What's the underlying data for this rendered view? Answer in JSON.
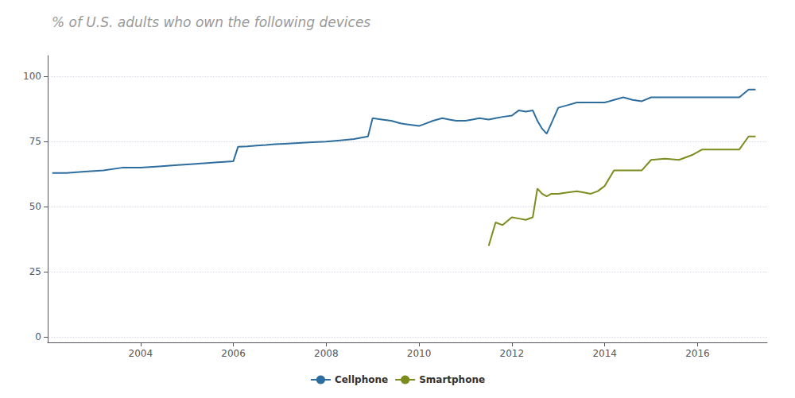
{
  "chart_data": {
    "type": "line",
    "title": "% of U.S. adults who own the following devices",
    "series": [
      {
        "name": "Cellphone",
        "color": "#2e6e9e",
        "x": [
          2002.1,
          2002.4,
          2002.8,
          2003.2,
          2003.6,
          2004.0,
          2004.4,
          2004.8,
          2005.2,
          2005.6,
          2006.0,
          2006.1,
          2006.3,
          2006.5,
          2006.7,
          2006.9,
          2007.1,
          2007.4,
          2007.7,
          2008.0,
          2008.3,
          2008.6,
          2008.9,
          2009.0,
          2009.2,
          2009.4,
          2009.6,
          2009.8,
          2010.0,
          2010.15,
          2010.3,
          2010.5,
          2010.65,
          2010.8,
          2011.0,
          2011.15,
          2011.3,
          2011.5,
          2011.65,
          2011.8,
          2012.0,
          2012.15,
          2012.3,
          2012.45,
          2012.55,
          2012.65,
          2012.75,
          2012.85,
          2013.0,
          2013.2,
          2013.4,
          2013.6,
          2013.8,
          2014.0,
          2014.2,
          2014.4,
          2014.6,
          2014.8,
          2015.0,
          2015.3,
          2015.6,
          2015.9,
          2016.1,
          2016.4,
          2016.6,
          2016.9,
          2017.1,
          2017.25
        ],
        "values": [
          63,
          63,
          63.5,
          64,
          65,
          65,
          65.5,
          66,
          66.5,
          67,
          67.5,
          73,
          73.2,
          73.5,
          73.7,
          74,
          74.2,
          74.5,
          74.8,
          75,
          75.5,
          76,
          77,
          84,
          83.5,
          83,
          82,
          81.5,
          81,
          82,
          83,
          84,
          83.5,
          83,
          83,
          83.5,
          84,
          83.5,
          84,
          84.5,
          85,
          87,
          86.5,
          87,
          83,
          80,
          78,
          82,
          88,
          89,
          90,
          90,
          90,
          90,
          91,
          92,
          91,
          90.5,
          92,
          92,
          92,
          92,
          92,
          92,
          92,
          92,
          95,
          95
        ]
      },
      {
        "name": "Smartphone",
        "color": "#7d8c1e",
        "x": [
          2011.5,
          2011.65,
          2011.8,
          2012.0,
          2012.15,
          2012.3,
          2012.45,
          2012.55,
          2012.65,
          2012.75,
          2012.85,
          2013.0,
          2013.2,
          2013.4,
          2013.55,
          2013.7,
          2013.85,
          2014.0,
          2014.2,
          2014.5,
          2014.8,
          2015.0,
          2015.3,
          2015.6,
          2015.9,
          2016.1,
          2016.4,
          2016.6,
          2016.9,
          2017.1,
          2017.25
        ],
        "values": [
          35,
          44,
          43,
          46,
          45.5,
          45,
          46,
          57,
          55,
          54,
          55,
          55,
          55.5,
          56,
          55.5,
          55,
          56,
          58,
          64,
          64,
          64,
          68,
          68.5,
          68,
          70,
          72,
          72,
          72,
          72,
          77,
          77
        ]
      }
    ],
    "xlim": [
      2002.0,
      2017.5
    ],
    "xticks": [
      2004,
      2006,
      2008,
      2010,
      2012,
      2014,
      2016
    ],
    "ylim": [
      -2,
      108
    ],
    "yticks": [
      0,
      25,
      50,
      75,
      100
    ],
    "grid": true,
    "legend": "bottom"
  }
}
